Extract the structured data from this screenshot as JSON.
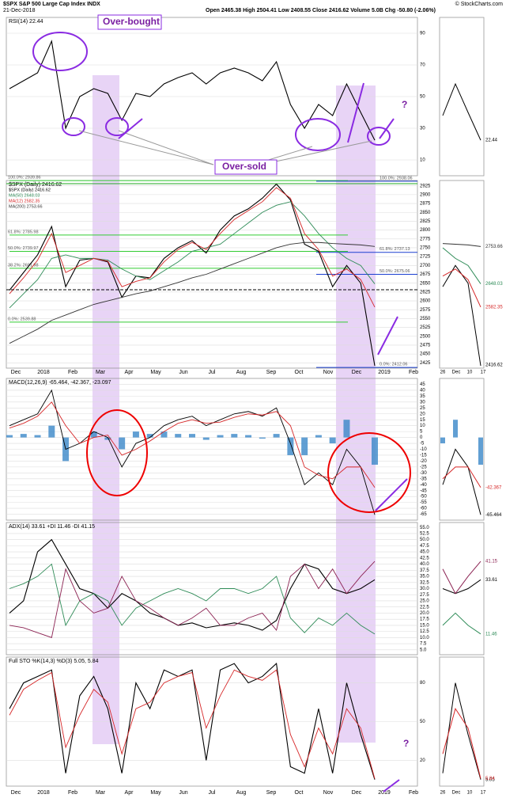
{
  "header": {
    "symbol": "$SPX S&P 500 Large Cap Index INDX",
    "date": "21-Dec-2018",
    "quote": "Open 2465.38 High 2504.41 Low 2408.55 Close 2416.62 Volume 5.0B Chg -50.80 (-2.06%)",
    "credit": "© StockCharts.com"
  },
  "x_labels": [
    "Dec",
    "2018",
    "Feb",
    "Mar",
    "Apr",
    "May",
    "Jun",
    "Jul",
    "Aug",
    "Sep",
    "Oct",
    "Nov",
    "Dec",
    "2019",
    "Feb"
  ],
  "mini_x_labels": [
    "26",
    "Dec",
    "10",
    "17"
  ],
  "annotations": {
    "overbought": "Over-bought",
    "oversold": "Over-sold",
    "q1": "?",
    "q2": "?"
  },
  "chart_data": [
    {
      "type": "line",
      "title": "RSI(14) 22.44",
      "ylim": [
        0,
        100
      ],
      "yticks": [
        10,
        30,
        50,
        70,
        90
      ],
      "series": [
        {
          "name": "RSI(14)",
          "color": "#000000",
          "values": [
            55,
            60,
            65,
            85,
            30,
            50,
            55,
            52,
            35,
            52,
            50,
            58,
            62,
            65,
            58,
            65,
            68,
            65,
            60,
            72,
            45,
            30,
            45,
            38,
            58,
            40,
            22.44
          ]
        }
      ]
    },
    {
      "type": "line",
      "title": "$SPX (Daily) 2416.62",
      "ylim": [
        2410,
        2940
      ],
      "yticks": [
        2425,
        2450,
        2475,
        2500,
        2525,
        2550,
        2575,
        2600,
        2625,
        2650,
        2675,
        2700,
        2725,
        2750,
        2775,
        2800,
        2825,
        2850,
        2875,
        2900,
        2925
      ],
      "series": [
        {
          "name": "$SPX (Daily) 2416.62",
          "color": "#000000",
          "values": [
            2630,
            2680,
            2730,
            2810,
            2640,
            2715,
            2720,
            2710,
            2610,
            2670,
            2665,
            2720,
            2750,
            2770,
            2735,
            2800,
            2840,
            2860,
            2890,
            2930,
            2885,
            2760,
            2740,
            2640,
            2700,
            2650,
            2416.62
          ]
        },
        {
          "name": "MA(50) 2648.03",
          "color": "#2e8b57",
          "values": [
            2580,
            2620,
            2660,
            2720,
            2730,
            2720,
            2720,
            2715,
            2690,
            2670,
            2660,
            2685,
            2710,
            2740,
            2750,
            2760,
            2790,
            2820,
            2850,
            2870,
            2880,
            2840,
            2790,
            2750,
            2720,
            2700,
            2648.03
          ]
        },
        {
          "name": "MA(12) 2582.35",
          "color": "#d62728",
          "values": [
            2620,
            2665,
            2715,
            2790,
            2680,
            2700,
            2720,
            2712,
            2640,
            2655,
            2665,
            2710,
            2745,
            2765,
            2745,
            2790,
            2830,
            2855,
            2880,
            2920,
            2890,
            2790,
            2745,
            2670,
            2690,
            2660,
            2582.35
          ]
        },
        {
          "name": "MA(200) 2753.66",
          "color": "#333333",
          "values": [
            2480,
            2500,
            2520,
            2545,
            2560,
            2575,
            2590,
            2600,
            2610,
            2620,
            2628,
            2640,
            2652,
            2665,
            2675,
            2690,
            2705,
            2720,
            2735,
            2750,
            2760,
            2765,
            2765,
            2762,
            2760,
            2758,
            2753.66
          ]
        }
      ],
      "fib_levels": [
        {
          "label": "100.0%: 2939.86",
          "value": 2939.86
        },
        {
          "label": "61.8%: 2785.98",
          "value": 2785.98
        },
        {
          "label": "50.0%: 2739.97",
          "value": 2739.97
        },
        {
          "label": "38.2%: 2691.98",
          "value": 2691.98
        },
        {
          "label": "0.0%: 2539.88",
          "value": 2539.88
        },
        {
          "label": "100.0%: 2938.06",
          "value": 2938.06
        },
        {
          "label": "61.8%: 2737.13",
          "value": 2737.13
        },
        {
          "label": "50.0%: 2675.06",
          "value": 2675.06
        },
        {
          "label": "0.0%: 2412.06",
          "value": 2412.06
        }
      ]
    },
    {
      "type": "line",
      "title": "MACD(12,26,9) -65.464, -42.367, -23.097",
      "ylim": [
        -70,
        50
      ],
      "yticks": [
        -65,
        -60,
        -55,
        -50,
        -45,
        -40,
        -35,
        -30,
        -25,
        -20,
        -15,
        -10,
        -5,
        0,
        5,
        10,
        15,
        20,
        25,
        30,
        35,
        40,
        45
      ],
      "series": [
        {
          "name": "Histogram",
          "type": "bar",
          "color": "#3a87c8",
          "values": [
            2,
            3,
            2,
            10,
            -20,
            0,
            5,
            -2,
            -10,
            5,
            3,
            5,
            3,
            3,
            -2,
            2,
            3,
            2,
            -1,
            3,
            -15,
            -15,
            2,
            -5,
            15,
            0,
            -23.097
          ]
        },
        {
          "name": "MACD",
          "color": "#000000",
          "values": [
            10,
            15,
            20,
            40,
            -10,
            -5,
            5,
            0,
            -25,
            -5,
            0,
            10,
            15,
            18,
            10,
            15,
            20,
            22,
            18,
            25,
            -5,
            -40,
            -30,
            -40,
            -10,
            -25,
            -65.464
          ]
        },
        {
          "name": "Signal",
          "color": "#d62728",
          "values": [
            8,
            12,
            18,
            30,
            10,
            -5,
            0,
            2,
            -15,
            -10,
            -3,
            5,
            12,
            15,
            12,
            13,
            17,
            20,
            19,
            22,
            10,
            -25,
            -32,
            -35,
            -25,
            -25,
            -42.367
          ]
        }
      ]
    },
    {
      "type": "line",
      "title": "ADX(14) 33.61 +DI 11.46 -DI 41.15",
      "ylim": [
        3,
        57
      ],
      "yticks": [
        {
          "value": 5,
          "label": "5.0"
        },
        {
          "value": 7.5,
          "label": "7.5"
        },
        {
          "value": 10,
          "label": "10.0"
        },
        {
          "value": 12.5,
          "label": "12.5"
        },
        {
          "value": 15,
          "label": "15.0"
        },
        {
          "value": 17.5,
          "label": "17.5"
        },
        {
          "value": 20,
          "label": "20.0"
        },
        {
          "value": 22.5,
          "label": "22.5"
        },
        {
          "value": 25,
          "label": "25.0"
        },
        {
          "value": 27.5,
          "label": "27.5"
        },
        {
          "value": 30,
          "label": "30.0"
        },
        {
          "value": 32.5,
          "label": "32.5"
        },
        {
          "value": 35,
          "label": "35.0"
        },
        {
          "value": 37.5,
          "label": "37.5"
        },
        {
          "value": 40,
          "label": "40.0"
        },
        {
          "value": 42.5,
          "label": "42.5"
        },
        {
          "value": 45,
          "label": "45.0"
        },
        {
          "value": 47.5,
          "label": "47.5"
        },
        {
          "value": 50,
          "label": "50.0"
        },
        {
          "value": 52.5,
          "label": "52.5"
        },
        {
          "value": 55,
          "label": "55.0"
        }
      ],
      "series": [
        {
          "name": "ADX(14)",
          "color": "#000000",
          "values": [
            20,
            25,
            45,
            50,
            40,
            30,
            28,
            22,
            28,
            25,
            20,
            18,
            15,
            16,
            14,
            15,
            16,
            15,
            13,
            17,
            30,
            40,
            38,
            30,
            28,
            30,
            33.61
          ]
        },
        {
          "name": "+DI",
          "color": "#2e8b57",
          "values": [
            30,
            32,
            35,
            40,
            15,
            25,
            28,
            25,
            15,
            22,
            25,
            28,
            30,
            28,
            25,
            30,
            30,
            28,
            30,
            35,
            18,
            12,
            18,
            15,
            20,
            15,
            11.46
          ]
        },
        {
          "name": "-DI",
          "color": "#8b2252",
          "values": [
            15,
            14,
            12,
            10,
            38,
            25,
            20,
            22,
            35,
            25,
            22,
            18,
            15,
            18,
            22,
            15,
            15,
            18,
            20,
            13,
            35,
            40,
            30,
            38,
            28,
            35,
            41.15
          ]
        }
      ]
    },
    {
      "type": "line",
      "title": "Full STO %K(14,3) %D(3) 5.05, 5.84",
      "ylim": [
        0,
        100
      ],
      "yticks": [
        20,
        50,
        80
      ],
      "series": [
        {
          "name": "%K",
          "color": "#000000",
          "values": [
            60,
            80,
            85,
            90,
            10,
            70,
            85,
            60,
            10,
            80,
            60,
            90,
            85,
            90,
            20,
            90,
            95,
            80,
            85,
            95,
            15,
            10,
            60,
            10,
            80,
            40,
            5.05
          ]
        },
        {
          "name": "%D",
          "color": "#d62728",
          "values": [
            55,
            75,
            82,
            88,
            30,
            55,
            75,
            65,
            25,
            60,
            65,
            80,
            85,
            88,
            45,
            70,
            90,
            85,
            82,
            90,
            40,
            15,
            45,
            25,
            60,
            45,
            5.84
          ]
        }
      ]
    }
  ]
}
